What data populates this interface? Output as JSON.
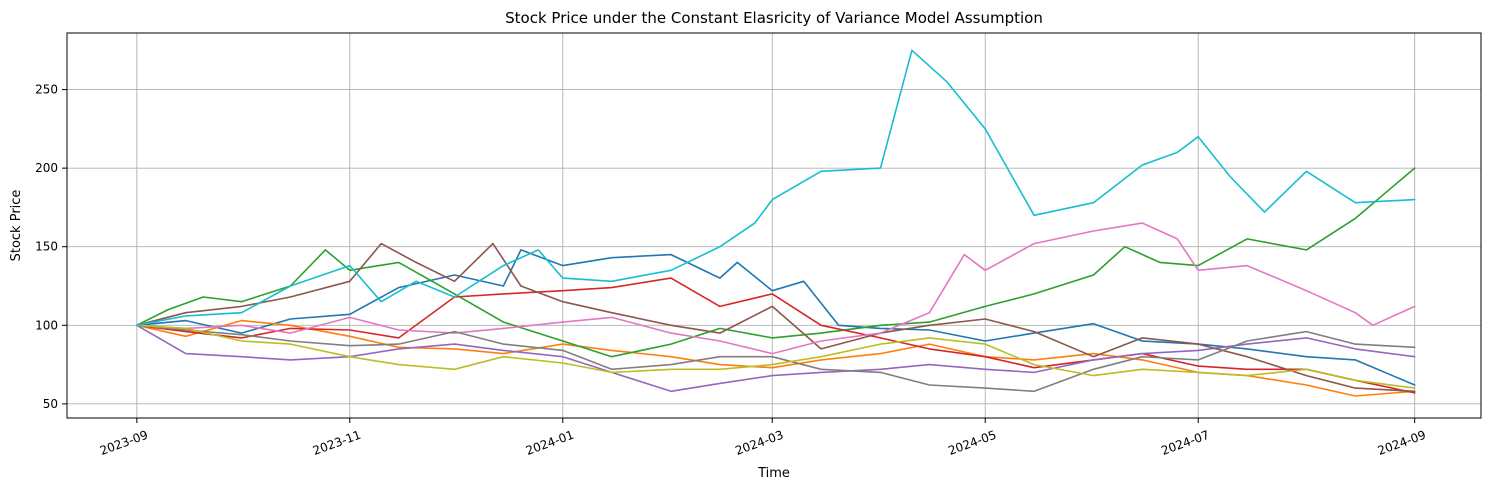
{
  "chart_data": {
    "type": "line",
    "title": "Stock Price under the Constant Elasricity of Variance Model Assumption",
    "xlabel": "Time",
    "ylabel": "Stock Price",
    "x_ticks": [
      "2023-09",
      "2023-11",
      "2024-01",
      "2024-03",
      "2024-05",
      "2024-07",
      "2024-09"
    ],
    "y_ticks": [
      50,
      100,
      150,
      200,
      250
    ],
    "xlim": [
      "2023-08-12",
      "2024-09-20"
    ],
    "ylim": [
      41,
      286
    ],
    "grid": true,
    "legend": "none",
    "series": [
      {
        "color": "#1f77b4",
        "values": [
          [
            "2023-09-01",
            100
          ],
          [
            "2023-09-15",
            103
          ],
          [
            "2023-10-01",
            95
          ],
          [
            "2023-10-15",
            104
          ],
          [
            "2023-11-01",
            107
          ],
          [
            "2023-11-15",
            124
          ],
          [
            "2023-12-01",
            132
          ],
          [
            "2023-12-15",
            125
          ],
          [
            "2023-12-20",
            148
          ],
          [
            "2024-01-01",
            138
          ],
          [
            "2024-01-15",
            143
          ],
          [
            "2024-02-01",
            145
          ],
          [
            "2024-02-15",
            130
          ],
          [
            "2024-02-20",
            140
          ],
          [
            "2024-03-01",
            122
          ],
          [
            "2024-03-10",
            128
          ],
          [
            "2024-03-20",
            100
          ],
          [
            "2024-04-01",
            98
          ],
          [
            "2024-04-15",
            97
          ],
          [
            "2024-05-01",
            90
          ],
          [
            "2024-05-15",
            95
          ],
          [
            "2024-06-01",
            101
          ],
          [
            "2024-06-15",
            90
          ],
          [
            "2024-07-01",
            88
          ],
          [
            "2024-07-15",
            85
          ],
          [
            "2024-08-01",
            80
          ],
          [
            "2024-08-15",
            78
          ],
          [
            "2024-09-01",
            62
          ]
        ]
      },
      {
        "color": "#ff7f0e",
        "values": [
          [
            "2023-09-01",
            100
          ],
          [
            "2023-09-15",
            93
          ],
          [
            "2023-10-01",
            103
          ],
          [
            "2023-10-15",
            100
          ],
          [
            "2023-11-01",
            93
          ],
          [
            "2023-11-15",
            86
          ],
          [
            "2023-12-01",
            85
          ],
          [
            "2023-12-15",
            82
          ],
          [
            "2024-01-01",
            88
          ],
          [
            "2024-01-15",
            84
          ],
          [
            "2024-02-01",
            80
          ],
          [
            "2024-02-15",
            75
          ],
          [
            "2024-03-01",
            73
          ],
          [
            "2024-03-15",
            78
          ],
          [
            "2024-04-01",
            82
          ],
          [
            "2024-04-15",
            88
          ],
          [
            "2024-05-01",
            80
          ],
          [
            "2024-05-15",
            78
          ],
          [
            "2024-06-01",
            82
          ],
          [
            "2024-06-15",
            78
          ],
          [
            "2024-07-01",
            70
          ],
          [
            "2024-07-15",
            68
          ],
          [
            "2024-08-01",
            62
          ],
          [
            "2024-08-15",
            55
          ],
          [
            "2024-09-01",
            58
          ]
        ]
      },
      {
        "color": "#2ca02c",
        "values": [
          [
            "2023-09-01",
            100
          ],
          [
            "2023-09-10",
            110
          ],
          [
            "2023-09-20",
            118
          ],
          [
            "2023-10-01",
            115
          ],
          [
            "2023-10-15",
            125
          ],
          [
            "2023-10-25",
            148
          ],
          [
            "2023-11-01",
            135
          ],
          [
            "2023-11-15",
            140
          ],
          [
            "2023-12-01",
            120
          ],
          [
            "2023-12-15",
            102
          ],
          [
            "2024-01-01",
            90
          ],
          [
            "2024-01-15",
            80
          ],
          [
            "2024-02-01",
            88
          ],
          [
            "2024-02-15",
            98
          ],
          [
            "2024-03-01",
            92
          ],
          [
            "2024-03-15",
            95
          ],
          [
            "2024-04-01",
            100
          ],
          [
            "2024-04-15",
            102
          ],
          [
            "2024-05-01",
            112
          ],
          [
            "2024-05-15",
            120
          ],
          [
            "2024-06-01",
            132
          ],
          [
            "2024-06-10",
            150
          ],
          [
            "2024-06-20",
            140
          ],
          [
            "2024-07-01",
            138
          ],
          [
            "2024-07-15",
            155
          ],
          [
            "2024-08-01",
            148
          ],
          [
            "2024-08-15",
            168
          ],
          [
            "2024-09-01",
            200
          ]
        ]
      },
      {
        "color": "#d62728",
        "values": [
          [
            "2023-09-01",
            100
          ],
          [
            "2023-09-15",
            96
          ],
          [
            "2023-10-01",
            92
          ],
          [
            "2023-10-15",
            98
          ],
          [
            "2023-11-01",
            97
          ],
          [
            "2023-11-15",
            92
          ],
          [
            "2023-12-01",
            118
          ],
          [
            "2023-12-15",
            120
          ],
          [
            "2024-01-01",
            122
          ],
          [
            "2024-01-15",
            124
          ],
          [
            "2024-02-01",
            130
          ],
          [
            "2024-02-15",
            112
          ],
          [
            "2024-03-01",
            120
          ],
          [
            "2024-03-15",
            100
          ],
          [
            "2024-04-01",
            92
          ],
          [
            "2024-04-15",
            85
          ],
          [
            "2024-05-01",
            80
          ],
          [
            "2024-05-15",
            73
          ],
          [
            "2024-06-01",
            78
          ],
          [
            "2024-06-15",
            82
          ],
          [
            "2024-07-01",
            74
          ],
          [
            "2024-07-15",
            72
          ],
          [
            "2024-08-01",
            72
          ],
          [
            "2024-08-15",
            65
          ],
          [
            "2024-09-01",
            57
          ]
        ]
      },
      {
        "color": "#9467bd",
        "values": [
          [
            "2023-09-01",
            100
          ],
          [
            "2023-09-15",
            82
          ],
          [
            "2023-10-01",
            80
          ],
          [
            "2023-10-15",
            78
          ],
          [
            "2023-11-01",
            80
          ],
          [
            "2023-11-15",
            85
          ],
          [
            "2023-12-01",
            88
          ],
          [
            "2023-12-15",
            84
          ],
          [
            "2024-01-01",
            80
          ],
          [
            "2024-01-15",
            70
          ],
          [
            "2024-02-01",
            58
          ],
          [
            "2024-02-15",
            63
          ],
          [
            "2024-03-01",
            68
          ],
          [
            "2024-03-15",
            70
          ],
          [
            "2024-04-01",
            72
          ],
          [
            "2024-04-15",
            75
          ],
          [
            "2024-05-01",
            72
          ],
          [
            "2024-05-15",
            70
          ],
          [
            "2024-06-01",
            78
          ],
          [
            "2024-06-15",
            82
          ],
          [
            "2024-07-01",
            84
          ],
          [
            "2024-07-15",
            88
          ],
          [
            "2024-08-01",
            92
          ],
          [
            "2024-08-15",
            85
          ],
          [
            "2024-09-01",
            80
          ]
        ]
      },
      {
        "color": "#8c564b",
        "values": [
          [
            "2023-09-01",
            100
          ],
          [
            "2023-09-15",
            108
          ],
          [
            "2023-10-01",
            112
          ],
          [
            "2023-10-15",
            118
          ],
          [
            "2023-11-01",
            128
          ],
          [
            "2023-11-10",
            152
          ],
          [
            "2023-11-20",
            140
          ],
          [
            "2023-12-01",
            128
          ],
          [
            "2023-12-12",
            152
          ],
          [
            "2023-12-20",
            125
          ],
          [
            "2024-01-01",
            115
          ],
          [
            "2024-01-15",
            108
          ],
          [
            "2024-02-01",
            100
          ],
          [
            "2024-02-15",
            95
          ],
          [
            "2024-03-01",
            112
          ],
          [
            "2024-03-15",
            85
          ],
          [
            "2024-04-01",
            95
          ],
          [
            "2024-04-15",
            100
          ],
          [
            "2024-05-01",
            104
          ],
          [
            "2024-05-15",
            96
          ],
          [
            "2024-06-01",
            80
          ],
          [
            "2024-06-15",
            92
          ],
          [
            "2024-07-01",
            88
          ],
          [
            "2024-07-15",
            80
          ],
          [
            "2024-08-01",
            68
          ],
          [
            "2024-08-15",
            60
          ],
          [
            "2024-09-01",
            58
          ]
        ]
      },
      {
        "color": "#e377c2",
        "values": [
          [
            "2023-09-01",
            100
          ],
          [
            "2023-09-15",
            98
          ],
          [
            "2023-10-01",
            100
          ],
          [
            "2023-10-15",
            95
          ],
          [
            "2023-11-01",
            105
          ],
          [
            "2023-11-15",
            97
          ],
          [
            "2023-12-01",
            95
          ],
          [
            "2023-12-15",
            98
          ],
          [
            "2024-01-01",
            102
          ],
          [
            "2024-01-15",
            105
          ],
          [
            "2024-02-01",
            95
          ],
          [
            "2024-02-15",
            90
          ],
          [
            "2024-03-01",
            82
          ],
          [
            "2024-03-15",
            90
          ],
          [
            "2024-04-01",
            95
          ],
          [
            "2024-04-15",
            108
          ],
          [
            "2024-04-25",
            145
          ],
          [
            "2024-05-01",
            135
          ],
          [
            "2024-05-15",
            152
          ],
          [
            "2024-06-01",
            160
          ],
          [
            "2024-06-15",
            165
          ],
          [
            "2024-06-25",
            155
          ],
          [
            "2024-07-01",
            135
          ],
          [
            "2024-07-15",
            138
          ],
          [
            "2024-08-01",
            122
          ],
          [
            "2024-08-15",
            108
          ],
          [
            "2024-08-20",
            100
          ],
          [
            "2024-09-01",
            112
          ]
        ]
      },
      {
        "color": "#7f7f7f",
        "values": [
          [
            "2023-09-01",
            100
          ],
          [
            "2023-09-15",
            97
          ],
          [
            "2023-10-01",
            94
          ],
          [
            "2023-10-15",
            90
          ],
          [
            "2023-11-01",
            87
          ],
          [
            "2023-11-15",
            88
          ],
          [
            "2023-12-01",
            96
          ],
          [
            "2023-12-15",
            88
          ],
          [
            "2024-01-01",
            84
          ],
          [
            "2024-01-15",
            72
          ],
          [
            "2024-02-01",
            75
          ],
          [
            "2024-02-15",
            80
          ],
          [
            "2024-03-01",
            80
          ],
          [
            "2024-03-15",
            72
          ],
          [
            "2024-04-01",
            70
          ],
          [
            "2024-04-15",
            62
          ],
          [
            "2024-05-01",
            60
          ],
          [
            "2024-05-15",
            58
          ],
          [
            "2024-06-01",
            72
          ],
          [
            "2024-06-15",
            80
          ],
          [
            "2024-07-01",
            78
          ],
          [
            "2024-07-15",
            90
          ],
          [
            "2024-08-01",
            96
          ],
          [
            "2024-08-15",
            88
          ],
          [
            "2024-09-01",
            86
          ]
        ]
      },
      {
        "color": "#bcbd22",
        "values": [
          [
            "2023-09-01",
            100
          ],
          [
            "2023-09-15",
            98
          ],
          [
            "2023-10-01",
            90
          ],
          [
            "2023-10-15",
            88
          ],
          [
            "2023-11-01",
            80
          ],
          [
            "2023-11-15",
            75
          ],
          [
            "2023-12-01",
            72
          ],
          [
            "2023-12-15",
            80
          ],
          [
            "2024-01-01",
            76
          ],
          [
            "2024-01-15",
            70
          ],
          [
            "2024-02-01",
            72
          ],
          [
            "2024-02-15",
            72
          ],
          [
            "2024-03-01",
            75
          ],
          [
            "2024-03-15",
            80
          ],
          [
            "2024-04-01",
            88
          ],
          [
            "2024-04-15",
            92
          ],
          [
            "2024-05-01",
            88
          ],
          [
            "2024-05-15",
            75
          ],
          [
            "2024-06-01",
            68
          ],
          [
            "2024-06-15",
            72
          ],
          [
            "2024-07-01",
            70
          ],
          [
            "2024-07-15",
            68
          ],
          [
            "2024-08-01",
            72
          ],
          [
            "2024-08-15",
            65
          ],
          [
            "2024-09-01",
            60
          ]
        ]
      },
      {
        "color": "#17becf",
        "values": [
          [
            "2023-09-01",
            100
          ],
          [
            "2023-09-15",
            106
          ],
          [
            "2023-10-01",
            108
          ],
          [
            "2023-10-15",
            125
          ],
          [
            "2023-11-01",
            138
          ],
          [
            "2023-11-10",
            115
          ],
          [
            "2023-11-20",
            128
          ],
          [
            "2023-12-01",
            118
          ],
          [
            "2023-12-15",
            138
          ],
          [
            "2023-12-25",
            148
          ],
          [
            "2024-01-01",
            130
          ],
          [
            "2024-01-15",
            128
          ],
          [
            "2024-02-01",
            135
          ],
          [
            "2024-02-15",
            150
          ],
          [
            "2024-02-25",
            165
          ],
          [
            "2024-03-01",
            180
          ],
          [
            "2024-03-15",
            198
          ],
          [
            "2024-04-01",
            200
          ],
          [
            "2024-04-10",
            275
          ],
          [
            "2024-04-20",
            255
          ],
          [
            "2024-05-01",
            225
          ],
          [
            "2024-05-15",
            170
          ],
          [
            "2024-06-01",
            178
          ],
          [
            "2024-06-15",
            202
          ],
          [
            "2024-06-25",
            210
          ],
          [
            "2024-07-01",
            220
          ],
          [
            "2024-07-10",
            195
          ],
          [
            "2024-07-20",
            172
          ],
          [
            "2024-08-01",
            198
          ],
          [
            "2024-08-15",
            178
          ],
          [
            "2024-09-01",
            180
          ]
        ]
      }
    ]
  }
}
